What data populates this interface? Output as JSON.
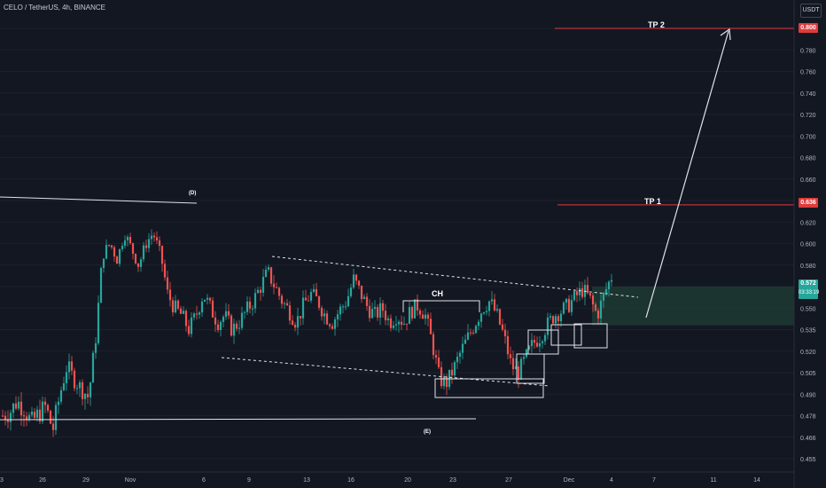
{
  "header": {
    "title": "CELO / TetherUS, 4h, BINANCE"
  },
  "axis": {
    "unit_label": "USDT"
  },
  "annotations": {
    "tp2_label": "TP 2",
    "tp1_label": "TP 1",
    "ch_label": "CH",
    "d_label": "(D)",
    "e_label": "(E)"
  },
  "colors": {
    "background": "#131722",
    "up": "#26a69a",
    "down": "#ef5350",
    "target_line": "#e03b3b",
    "zone": "#1e3a32"
  },
  "chart_data": {
    "type": "candlestick",
    "title": "CELO / TetherUS, 4h, BINANCE",
    "x_tick_labels": [
      "3",
      "26",
      "29",
      "Nov",
      "6",
      "9",
      "13",
      "16",
      "20",
      "23",
      "27",
      "Dec",
      "4",
      "7",
      "11",
      "14"
    ],
    "y_tick_labels": [
      "0.455",
      "0.466",
      "0.478",
      "0.490",
      "0.505",
      "0.520",
      "0.535",
      "0.550",
      "0.565",
      "0.580",
      "0.600",
      "0.620",
      "0.640",
      "0.660",
      "0.680",
      "0.700",
      "0.720",
      "0.740",
      "0.760",
      "0.780",
      "0.800"
    ],
    "y_ticks": [
      0.455,
      0.466,
      0.478,
      0.49,
      0.505,
      0.52,
      0.535,
      0.55,
      0.565,
      0.58,
      0.6,
      0.62,
      0.64,
      0.66,
      0.68,
      0.7,
      0.72,
      0.74,
      0.76,
      0.78,
      0.8
    ],
    "targets": [
      {
        "name": "TP 2",
        "price": 0.8,
        "badge": "0.800"
      },
      {
        "name": "TP 1",
        "price": 0.636,
        "badge": "0.636"
      }
    ],
    "current": {
      "price": 0.572,
      "badge": "0.572",
      "countdown": "03:33:19"
    },
    "ohlc_anchors": [
      0.478,
      0.48,
      0.486,
      0.482,
      0.474,
      0.479,
      0.483,
      0.47,
      0.49,
      0.51,
      0.5,
      0.494,
      0.488,
      0.53,
      0.59,
      0.6,
      0.585,
      0.61,
      0.595,
      0.58,
      0.6,
      0.61,
      0.59,
      0.56,
      0.55,
      0.545,
      0.535,
      0.545,
      0.56,
      0.55,
      0.54,
      0.545,
      0.535,
      0.54,
      0.548,
      0.555,
      0.565,
      0.575,
      0.565,
      0.555,
      0.548,
      0.54,
      0.552,
      0.56,
      0.555,
      0.545,
      0.54,
      0.548,
      0.555,
      0.57,
      0.56,
      0.55,
      0.545,
      0.55,
      0.54,
      0.545,
      0.54,
      0.548,
      0.552,
      0.545,
      0.525,
      0.5,
      0.498,
      0.508,
      0.52,
      0.53,
      0.54,
      0.55,
      0.555,
      0.545,
      0.53,
      0.51,
      0.505,
      0.515,
      0.525,
      0.53,
      0.538,
      0.545,
      0.548,
      0.552,
      0.558,
      0.563,
      0.556,
      0.545,
      0.56,
      0.572
    ]
  }
}
